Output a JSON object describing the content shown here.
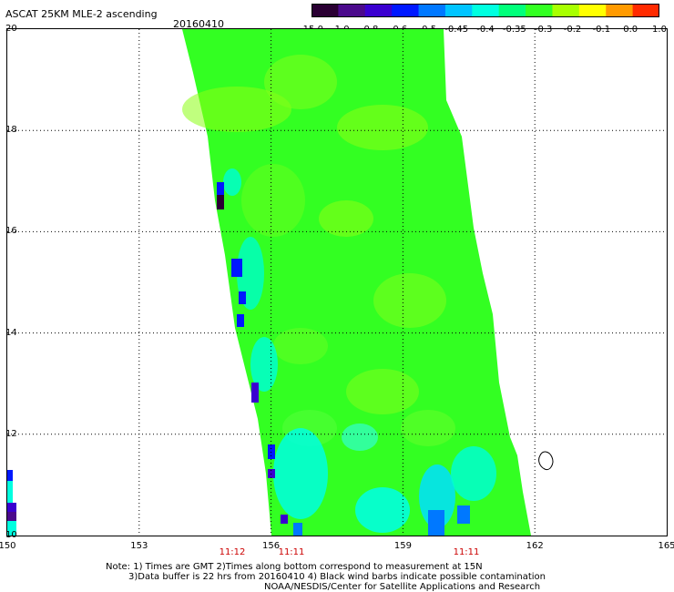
{
  "header": {
    "title": "ASCAT 25KM MLE-2 ascending",
    "date": "20160410"
  },
  "colorbar": {
    "labels": [
      "-15.0",
      "-1.0",
      "-0.8",
      "-0.6",
      "-0.5",
      "-0.45",
      "-0.4",
      "-0.35",
      "-0.3",
      "-0.2",
      "-0.1",
      "0.0",
      "1.0"
    ],
    "colors": [
      "#2a0033",
      "#4b0a8c",
      "#3a00d0",
      "#0018ff",
      "#0078ff",
      "#00c4ff",
      "#00ffe0",
      "#00ff7a",
      "#33ff22",
      "#a8ff00",
      "#ffff00",
      "#ff9a00",
      "#ff2a00"
    ]
  },
  "map": {
    "lat_labels": [
      "20",
      "18",
      "16",
      "14",
      "12",
      "10"
    ],
    "lon_labels": [
      "150",
      "153",
      "156",
      "159",
      "162",
      "165"
    ],
    "time_labels": [
      "11:12",
      "11:11",
      "11:11"
    ],
    "swath_color": "#33ff22",
    "time_color": "#cc0000"
  },
  "notes": {
    "line1": "Note: 1) Times are GMT 2)Times along bottom correspond to measurement at 15N",
    "line2": "3)Data buffer is 22 hrs from 20160410 4) Black wind barbs indicate possible contamination",
    "line3": "NOAA/NESDIS/Center for Satellite Applications and Research"
  }
}
